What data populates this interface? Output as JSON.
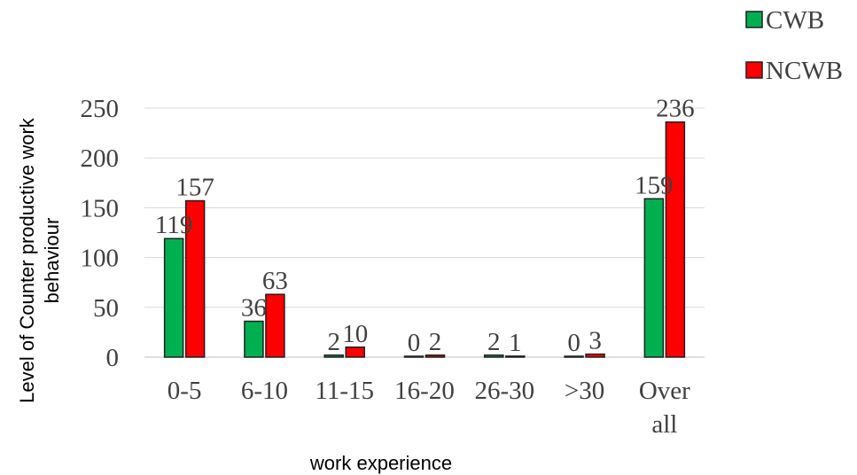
{
  "chart_data": {
    "type": "bar",
    "title": "",
    "xlabel": "work experience",
    "ylabel": "Level of Counter productive work behaviour",
    "categories": [
      "0-5",
      "6-10",
      "11-15",
      "16-20",
      "26-30",
      ">30",
      "Over all"
    ],
    "series": [
      {
        "name": "CWB",
        "color": "#00b050",
        "values": [
          119,
          36,
          2,
          0,
          2,
          0,
          159
        ]
      },
      {
        "name": "NCWB",
        "color": "#ff0000",
        "values": [
          157,
          63,
          10,
          2,
          1,
          3,
          236
        ]
      }
    ],
    "ylim": [
      0,
      250
    ],
    "yticks": [
      0,
      50,
      100,
      150,
      200,
      250
    ],
    "grid": true,
    "legend": "top-right"
  }
}
